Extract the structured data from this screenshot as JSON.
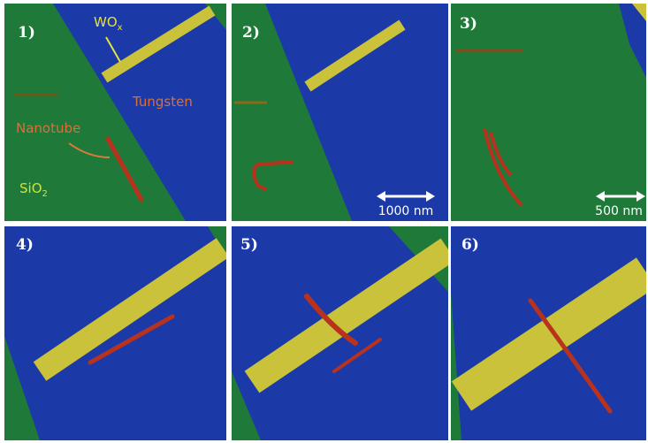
{
  "panels": [
    {
      "label": "1)",
      "wox": {
        "main": "WO",
        "sub": "x"
      },
      "tungsten": "Tungsten",
      "nanotube": "Nanotube",
      "sio2": {
        "main": "SiO",
        "sub": "2"
      }
    },
    {
      "label": "2)",
      "scale_bar": "1000 nm"
    },
    {
      "label": "3)",
      "scale_bar": "500 nm"
    },
    {
      "label": "4)"
    },
    {
      "label": "5)"
    },
    {
      "label": "6)"
    }
  ]
}
